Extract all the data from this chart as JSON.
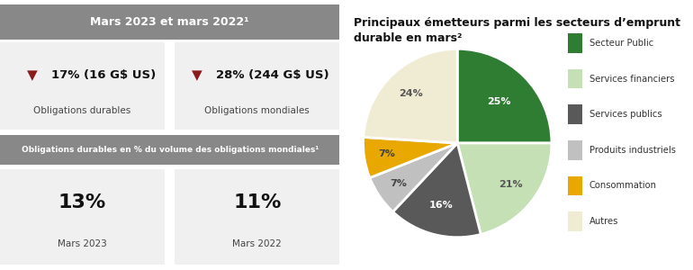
{
  "left_title": "Mars 2023 et mars 2022¹",
  "left_title_bg": "#888888",
  "left_title_color": "#ffffff",
  "arrow_color": "#8b1a1a",
  "box_bg": "#f0f0f0",
  "box1_main": "17% (16 G$ US)",
  "box1_label": "Obligations durables",
  "box2_main": "28% (244 G$ US)",
  "box2_label": "Obligations mondiales",
  "bottom_title": "Obligations durables en % du volume des obligations mondiales¹",
  "bottom_title_bg": "#888888",
  "bottom_title_color": "#ffffff",
  "stat1_value": "13%",
  "stat1_label": "Mars 2023",
  "stat2_value": "11%",
  "stat2_label": "Mars 2022",
  "pie_title": "Principaux émetteurs parmi les secteurs d’emprunt\ndurable en mars²",
  "pie_values": [
    25,
    21,
    16,
    7,
    7,
    24
  ],
  "pie_labels": [
    "25%",
    "21%",
    "16%",
    "7%",
    "7%",
    "24%"
  ],
  "pie_colors": [
    "#2e7d32",
    "#c5e0b4",
    "#595959",
    "#c0c0c0",
    "#e8a800",
    "#f0ecd4"
  ],
  "pie_label_colors": [
    "#ffffff",
    "#555555",
    "#ffffff",
    "#444444",
    "#444444",
    "#555555"
  ],
  "legend_labels": [
    "Secteur Public",
    "Services financiers",
    "Services publics",
    "Produits industriels",
    "Consommation",
    "Autres"
  ],
  "legend_colors": [
    "#2e7d32",
    "#c5e0b4",
    "#595959",
    "#c0c0c0",
    "#e8a800",
    "#f0ecd4"
  ],
  "bg_color": "#ffffff",
  "text_dark": "#111111",
  "text_mid": "#444444"
}
